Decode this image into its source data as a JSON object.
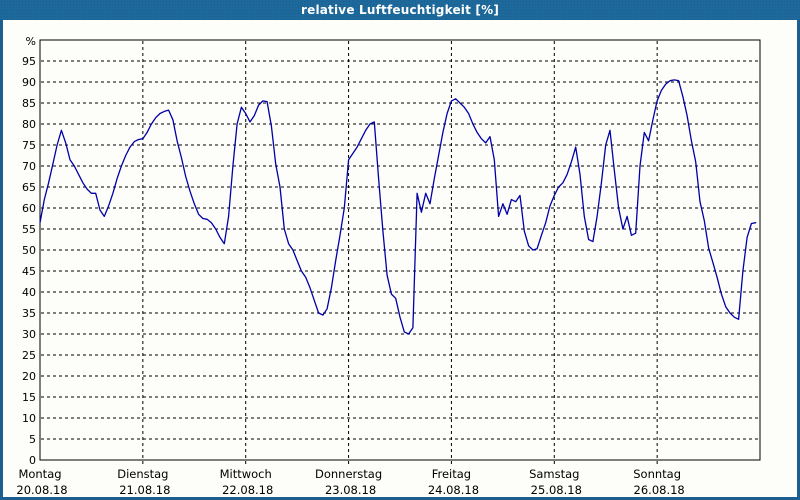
{
  "window": {
    "title": "relative Luftfeuchtigkeit [%]"
  },
  "colors": {
    "titlebar": "#1E699B",
    "frame": "#1B5E8F",
    "background": "#FDFDFA",
    "axis": "#000000",
    "grid": "#000000",
    "line": "#0000A8",
    "text": "#000000"
  },
  "chart_data": {
    "type": "line",
    "title": "relative Luftfeuchtigkeit [%]",
    "xlabel": "",
    "ylabel": "%",
    "ylim": [
      0,
      100
    ],
    "yticks": [
      0,
      5,
      10,
      15,
      20,
      25,
      30,
      35,
      40,
      45,
      50,
      55,
      60,
      65,
      70,
      75,
      80,
      85,
      90,
      95
    ],
    "grid": true,
    "legend_position": "none",
    "x_unit": "hours",
    "points_per_day": 24,
    "days": [
      {
        "label": "Montag",
        "date": "20.08.18"
      },
      {
        "label": "Dienstag",
        "date": "21.08.18"
      },
      {
        "label": "Mittwoch",
        "date": "22.08.18"
      },
      {
        "label": "Donnerstag",
        "date": "23.08.18"
      },
      {
        "label": "Freitag",
        "date": "24.08.18"
      },
      {
        "label": "Samstag",
        "date": "25.08.18"
      },
      {
        "label": "Sonntag",
        "date": "26.08.18"
      }
    ],
    "series": [
      {
        "name": "relative Luftfeuchtigkeit",
        "color": "#0000A8",
        "values": [
          56.5,
          62,
          66,
          70.5,
          75,
          78.5,
          75.5,
          71.5,
          70,
          68,
          66,
          64.5,
          63.5,
          63.5,
          59.5,
          58,
          60.5,
          63.5,
          67,
          70,
          72.5,
          74.5,
          75.8,
          76.3,
          76.5,
          78,
          80,
          81.5,
          82.5,
          83,
          83.3,
          81,
          76,
          72,
          67.5,
          64,
          61,
          58.5,
          57.5,
          57.3,
          56.5,
          55,
          53,
          51.5,
          58,
          70,
          80,
          84,
          82.5,
          80.5,
          82,
          84.5,
          85.5,
          85.3,
          79.5,
          70.5,
          65,
          55,
          51.5,
          50,
          47.5,
          45,
          43.5,
          41,
          38,
          35,
          34.5,
          36,
          41,
          47.5,
          53.5,
          60,
          71.5,
          73,
          74.5,
          76.5,
          78.5,
          80,
          80.5,
          67,
          54.5,
          44,
          39.5,
          38.5,
          34,
          30.5,
          30,
          31.5,
          63.5,
          59,
          63.5,
          61,
          67,
          72.5,
          78,
          82.5,
          85.5,
          86,
          85,
          84,
          82.5,
          80,
          78,
          76.5,
          75.5,
          77,
          71.5,
          58,
          61,
          58.5,
          62,
          61.5,
          63,
          54.5,
          51,
          50,
          50.3,
          53.5,
          56.5,
          60.5,
          63,
          65,
          66,
          68,
          71,
          74.5,
          68,
          58,
          52.5,
          52,
          58,
          66,
          75,
          78.5,
          69,
          60,
          55,
          58,
          53.5,
          54,
          70,
          78,
          76,
          81,
          85.5,
          88,
          89.5,
          90.3,
          90.5,
          90.3,
          86.5,
          82,
          76,
          71,
          61.5,
          57,
          50.5,
          47,
          43.5,
          39.5,
          36.5,
          35,
          34,
          33.5,
          45,
          53,
          56.3,
          56.5
        ]
      }
    ]
  }
}
